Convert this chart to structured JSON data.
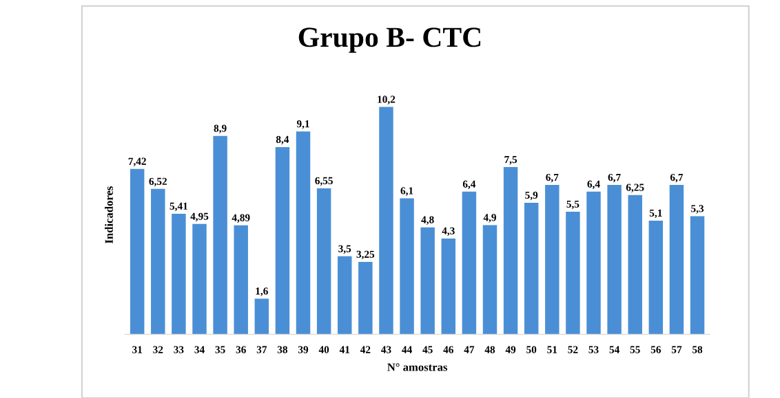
{
  "chart_data": {
    "type": "bar",
    "title": "Grupo B- CTC",
    "xlabel": "N° amostras",
    "ylabel": "Indicadores",
    "tick_labels": "x",
    "categories": [
      "31",
      "32",
      "33",
      "34",
      "35",
      "36",
      "37",
      "38",
      "39",
      "40",
      "41",
      "42",
      "43",
      "44",
      "45",
      "46",
      "47",
      "48",
      "49",
      "50",
      "51",
      "52",
      "53",
      "54",
      "55",
      "56",
      "57",
      "58"
    ],
    "values": [
      7.42,
      6.52,
      5.41,
      4.95,
      8.9,
      4.89,
      1.6,
      8.4,
      9.1,
      6.55,
      3.5,
      3.25,
      10.2,
      6.1,
      4.8,
      4.3,
      6.4,
      4.9,
      7.5,
      5.9,
      6.7,
      5.5,
      6.4,
      6.7,
      6.25,
      5.1,
      6.7,
      5.3
    ],
    "value_labels": [
      "7,42",
      "6,52",
      "5,41",
      "4,95",
      "8,9",
      "4,89",
      "1,6",
      "8,4",
      "9,1",
      "6,55",
      "3,5",
      "3,25",
      "10,2",
      "6,1",
      "4,8",
      "4,3",
      "6,4",
      "4,9",
      "7,5",
      "5,9",
      "6,7",
      "5,5",
      "6,4",
      "6,7",
      "6,25",
      "5,1",
      "6,7",
      "5,3"
    ],
    "color": "#4a8fd6"
  }
}
